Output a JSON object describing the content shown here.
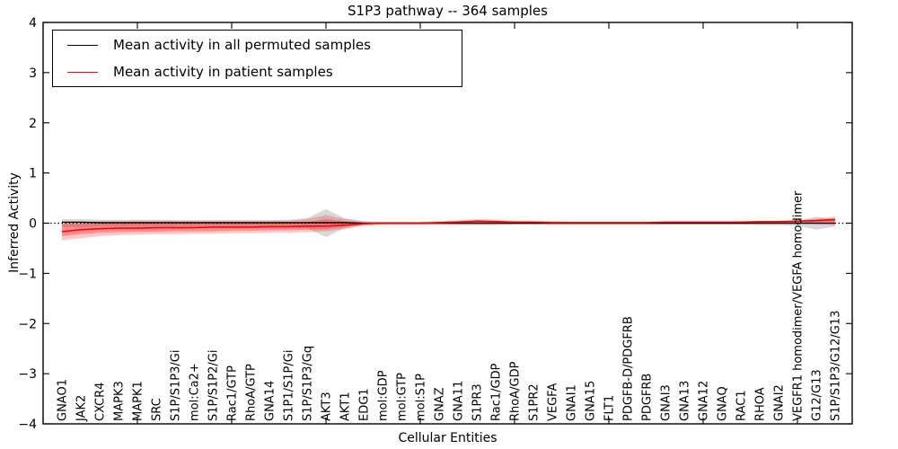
{
  "title": "S1P3 pathway -- 364 samples",
  "legend": {
    "items": [
      {
        "label": "Mean activity in all permuted samples",
        "color": "#000000"
      },
      {
        "label": "Mean activity in patient samples",
        "color": "#ff0000"
      }
    ]
  },
  "axes": {
    "x_label": "Cellular Entities",
    "y_label": "Inferred Activity",
    "y_tick_labels": [
      "4",
      "3",
      "2",
      "1",
      "0",
      "−1",
      "−2",
      "−3",
      "−4"
    ],
    "ylim": [
      -4,
      4
    ]
  },
  "chart_data": {
    "type": "line",
    "title": "S1P3 pathway -- 364 samples",
    "xlabel": "Cellular Entities",
    "ylabel": "Inferred Activity",
    "ylim": [
      -4,
      4
    ],
    "y_ticks": [
      -4,
      -3,
      -2,
      -1,
      0,
      1,
      2,
      3,
      4
    ],
    "grid": false,
    "legend_position": "upper left",
    "zero_reference_line": "black dotted line at y=0",
    "categories": [
      "GNAO1",
      "JAK2",
      "CXCR4",
      "MAPK3",
      "MAPK1",
      "SRC",
      "S1P/S1P3/Gi",
      "mol:Ca2+",
      "S1P/S1P2/Gi",
      "Rac1/GTP",
      "RhoA/GTP",
      "GNA14",
      "S1P1/S1P/Gi",
      "S1P/S1P3/Gq",
      "AKT3",
      "AKT1",
      "EDG1",
      "mol:GDP",
      "mol:GTP",
      "mol:S1P",
      "GNAZ",
      "GNA11",
      "S1PR3",
      "Rac1/GDP",
      "RhoA/GDP",
      "S1PR2",
      "VEGFA",
      "GNAI1",
      "GNA15",
      "FLT1",
      "PDGFB-D/PDGFRB",
      "PDGFRB",
      "GNAI3",
      "GNA13",
      "GNA12",
      "GNAQ",
      "RAC1",
      "RHOA",
      "GNAI2",
      "VEGFR1 homodimer/VEGFA homodimer",
      "G12/G13",
      "S1P/S1P3/G12/G13"
    ],
    "series": [
      {
        "name": "Mean activity in all permuted samples",
        "color": "#000000",
        "values": [
          0.02,
          0.02,
          0.01,
          0.01,
          0.01,
          0.01,
          0.01,
          0.01,
          0.01,
          0.01,
          0.01,
          0.01,
          0.01,
          0.01,
          0.01,
          0.01,
          0,
          0,
          0,
          0,
          0,
          0,
          0,
          0,
          0,
          0,
          0,
          0,
          0,
          0,
          0,
          0,
          0,
          0,
          0,
          0,
          0,
          0,
          0,
          0,
          0,
          0
        ]
      },
      {
        "name": "Mean activity in patient samples",
        "color": "#ff0000",
        "values": [
          -0.17,
          -0.13,
          -0.11,
          -0.1,
          -0.1,
          -0.09,
          -0.09,
          -0.09,
          -0.08,
          -0.08,
          -0.08,
          -0.07,
          -0.07,
          -0.06,
          -0.06,
          -0.04,
          -0.01,
          0,
          0,
          0,
          0.01,
          0.02,
          0.04,
          0.03,
          0.02,
          0.02,
          0.01,
          0.01,
          0.01,
          0.01,
          0.01,
          0.01,
          0.02,
          0.02,
          0.02,
          0.02,
          0.02,
          0.03,
          0.03,
          0.04,
          0.05,
          0.07
        ]
      }
    ],
    "bands": [
      {
        "name": "permuted-confidence-band",
        "color": "#000000",
        "opacity": 0.15,
        "upper": [
          0.08,
          0.08,
          0.07,
          0.07,
          0.07,
          0.07,
          0.06,
          0.06,
          0.06,
          0.06,
          0.06,
          0.06,
          0.07,
          0.1,
          0.28,
          0.1,
          0.04,
          0.03,
          0.03,
          0.03,
          0.03,
          0.04,
          0.04,
          0.04,
          0.03,
          0.03,
          0.03,
          0.03,
          0.03,
          0.03,
          0.03,
          0.03,
          0.03,
          0.03,
          0.03,
          0.03,
          0.03,
          0.04,
          0.04,
          0.05,
          0.13,
          0.07
        ],
        "lower": [
          -0.08,
          -0.08,
          -0.07,
          -0.07,
          -0.07,
          -0.07,
          -0.06,
          -0.06,
          -0.06,
          -0.06,
          -0.06,
          -0.06,
          -0.07,
          -0.1,
          -0.28,
          -0.1,
          -0.04,
          -0.03,
          -0.03,
          -0.03,
          -0.03,
          -0.04,
          -0.04,
          -0.04,
          -0.03,
          -0.03,
          -0.03,
          -0.03,
          -0.03,
          -0.03,
          -0.03,
          -0.03,
          -0.03,
          -0.03,
          -0.03,
          -0.03,
          -0.03,
          -0.04,
          -0.04,
          -0.05,
          -0.13,
          -0.07
        ]
      },
      {
        "name": "patient-confidence-band-outer",
        "color": "#ff0000",
        "opacity": 0.22,
        "upper": [
          0.02,
          0.03,
          0.04,
          0.04,
          0.05,
          0.05,
          0.05,
          0.05,
          0.05,
          0.05,
          0.05,
          0.05,
          0.05,
          0.08,
          0.16,
          0.08,
          0.03,
          0.02,
          0.02,
          0.02,
          0.04,
          0.06,
          0.08,
          0.07,
          0.05,
          0.04,
          0.04,
          0.03,
          0.03,
          0.03,
          0.03,
          0.03,
          0.03,
          0.03,
          0.03,
          0.03,
          0.04,
          0.04,
          0.05,
          0.06,
          0.09,
          0.13
        ],
        "lower": [
          -0.34,
          -0.3,
          -0.26,
          -0.24,
          -0.23,
          -0.22,
          -0.22,
          -0.21,
          -0.21,
          -0.2,
          -0.2,
          -0.19,
          -0.19,
          -0.18,
          -0.16,
          -0.12,
          -0.05,
          -0.03,
          -0.03,
          -0.03,
          -0.03,
          -0.03,
          -0.03,
          -0.03,
          -0.03,
          -0.03,
          -0.03,
          -0.03,
          -0.03,
          -0.03,
          -0.03,
          -0.03,
          -0.03,
          -0.03,
          -0.03,
          -0.03,
          -0.03,
          -0.02,
          -0.02,
          -0.02,
          -0.03,
          -0.04
        ]
      },
      {
        "name": "patient-confidence-band-inner",
        "color": "#ff0000",
        "opacity": 0.28,
        "upper": [
          -0.02,
          -0.01,
          0,
          0,
          0,
          0,
          0,
          0,
          0,
          0,
          0,
          0,
          0,
          0.02,
          0.08,
          0.04,
          0.01,
          0.01,
          0.01,
          0.01,
          0.02,
          0.04,
          0.06,
          0.05,
          0.03,
          0.03,
          0.02,
          0.02,
          0.02,
          0.02,
          0.02,
          0.02,
          0.02,
          0.02,
          0.02,
          0.02,
          0.03,
          0.03,
          0.03,
          0.04,
          0.07,
          0.1
        ],
        "lower": [
          -0.26,
          -0.22,
          -0.19,
          -0.18,
          -0.17,
          -0.17,
          -0.16,
          -0.16,
          -0.16,
          -0.15,
          -0.15,
          -0.14,
          -0.14,
          -0.13,
          -0.12,
          -0.08,
          -0.03,
          -0.01,
          -0.01,
          -0.01,
          -0.01,
          -0.01,
          0,
          0,
          0,
          0,
          0,
          0,
          0,
          0,
          0,
          0,
          0,
          0,
          0,
          0,
          0,
          0.01,
          0.01,
          0.01,
          0.02,
          0.03
        ]
      }
    ]
  }
}
